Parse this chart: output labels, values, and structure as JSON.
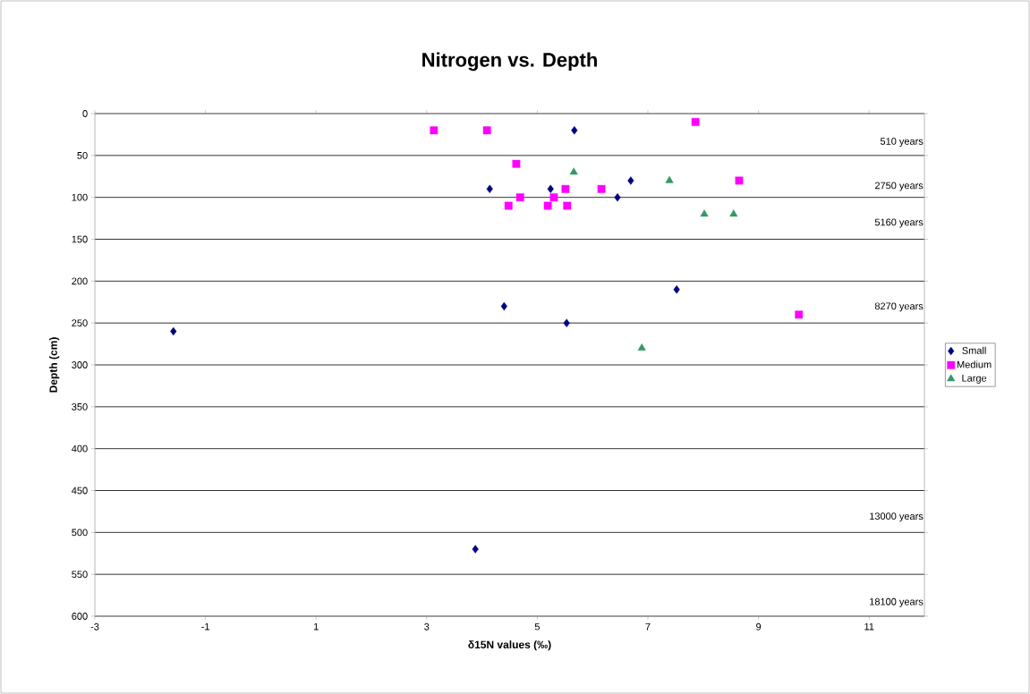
{
  "chart_data": {
    "type": "scatter",
    "title": "Nitrogen vs. Depth",
    "xlabel": "δ15N values (‰)",
    "ylabel": "Depth (cm)",
    "xlim": [
      -3,
      12
    ],
    "xticks": [
      -3,
      -1,
      1,
      3,
      5,
      7,
      9,
      11
    ],
    "ylim": [
      600,
      0
    ],
    "yticks": [
      0,
      50,
      100,
      150,
      200,
      250,
      300,
      350,
      400,
      450,
      500,
      550,
      600
    ],
    "grid": "y",
    "legend": "right",
    "series": [
      {
        "name": "Small",
        "color": "#000080",
        "marker": "diamond",
        "x": [
          -1.58,
          5.67,
          4.14,
          5.24,
          6.69,
          6.45,
          7.52,
          4.4,
          5.53,
          3.88
        ],
        "values": [
          260,
          20,
          90,
          90,
          80,
          100,
          210,
          230,
          250,
          520
        ]
      },
      {
        "name": "Medium",
        "color": "#ff00ff",
        "marker": "square",
        "x": [
          3.13,
          4.09,
          7.86,
          4.62,
          4.69,
          4.48,
          5.3,
          5.51,
          5.19,
          5.54,
          6.16,
          8.65,
          9.73
        ],
        "values": [
          20,
          20,
          10,
          60,
          100,
          110,
          100,
          90,
          110,
          110,
          90,
          80,
          240
        ]
      },
      {
        "name": "Large",
        "color": "#339966",
        "marker": "triangle",
        "x": [
          5.66,
          7.39,
          8.02,
          8.55,
          6.89
        ],
        "values": [
          70,
          80,
          120,
          120,
          280
        ]
      }
    ],
    "annotations": [
      "510 years",
      "2750 years",
      "5160 years",
      "8270 years",
      "13000 years",
      "18100 years"
    ]
  }
}
